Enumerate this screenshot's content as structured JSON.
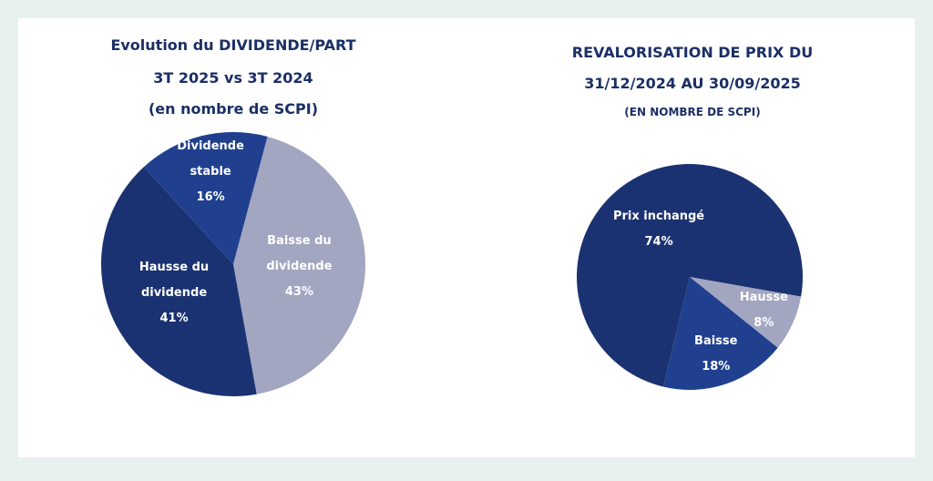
{
  "chart_data": [
    {
      "type": "pie",
      "title": "Evolution du DIVIDENDE/PART",
      "subtitle": "3T 2025 vs 3T 2024",
      "note": "(en nombre de SCPI)",
      "categories": [
        "Baisse du dividende",
        "Hausse du dividende",
        "Dividende stable"
      ],
      "values": [
        43,
        41,
        16
      ],
      "value_labels": [
        "43%",
        "41%",
        "16%"
      ],
      "colors": [
        "#a2a6c1",
        "#1b3272",
        "#20408f"
      ]
    },
    {
      "type": "pie",
      "title": "REVALORISATION DE PRIX DU",
      "subtitle": "31/12/2024 AU 30/09/2025",
      "note": "(EN NOMBRE DE SCPI)",
      "categories": [
        "Hausse",
        "Baisse",
        "Prix inchangé"
      ],
      "values": [
        8,
        18,
        74
      ],
      "value_labels": [
        "8%",
        "18%",
        "74%"
      ],
      "colors": [
        "#a2a6c1",
        "#20408f",
        "#1b3272"
      ]
    }
  ]
}
